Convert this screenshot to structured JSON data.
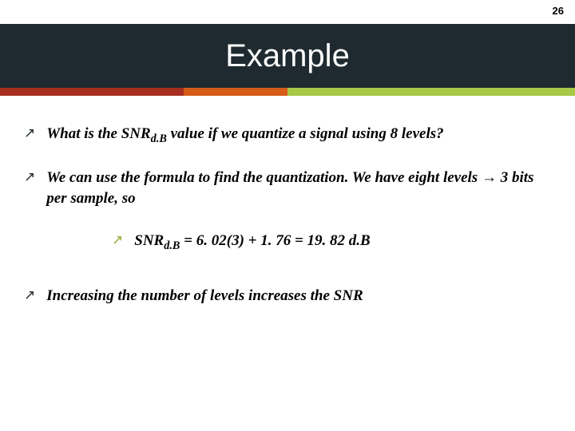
{
  "page_number": "26",
  "title": "Example",
  "title_band_bg": "#1e2a2f",
  "title_color": "#ffffff",
  "title_fontsize": 40,
  "color_bar": [
    {
      "color": "#a62e1f",
      "width_pct": 32
    },
    {
      "color": "#d55b16",
      "width_pct": 18
    },
    {
      "color": "#a7c846",
      "width_pct": 50
    }
  ],
  "bullets": [
    {
      "arrow_color": "dark",
      "indent": false,
      "parts": [
        {
          "t": "What is the SNR"
        },
        {
          "t": "d.B",
          "sub": true
        },
        {
          "t": " value if we quantize a signal using 8 levels?"
        }
      ]
    },
    {
      "arrow_color": "dark",
      "indent": false,
      "parts": [
        {
          "t": "We can use the formula to find the quantization. We have eight levels "
        },
        {
          "t": "→",
          "arrow": true
        },
        {
          "t": " 3 bits per sample, so"
        }
      ]
    },
    {
      "arrow_color": "green",
      "indent": true,
      "parts": [
        {
          "t": "SNR"
        },
        {
          "t": "d.B",
          "sub": true
        },
        {
          "t": " = 6. 02(3) + 1. 76 = 19. 82 d.B"
        }
      ]
    },
    {
      "arrow_color": "dark",
      "indent": false,
      "parts": [
        {
          "t": "Increasing the number of levels increases the SNR"
        }
      ]
    }
  ],
  "arrow_glyph": "↗",
  "body_fontsize": 19,
  "body_font": "Georgia, serif"
}
